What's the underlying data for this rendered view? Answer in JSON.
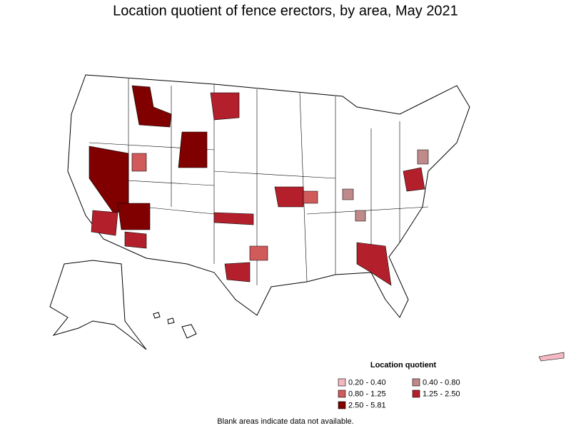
{
  "title": "Location quotient of fence erectors, by area, May 2021",
  "legend": {
    "title": "Location quotient",
    "items": [
      {
        "label": "0.20 - 0.40",
        "color": "#f4b8c2"
      },
      {
        "label": "0.40 - 0.80",
        "color": "#c08a8a"
      },
      {
        "label": "0.80 - 1.25",
        "color": "#d15a5a"
      },
      {
        "label": "1.25 - 2.50",
        "color": "#b3202c"
      },
      {
        "label": "2.50 - 5.81",
        "color": "#800000"
      }
    ]
  },
  "footnote": "Blank areas indicate data not available."
}
